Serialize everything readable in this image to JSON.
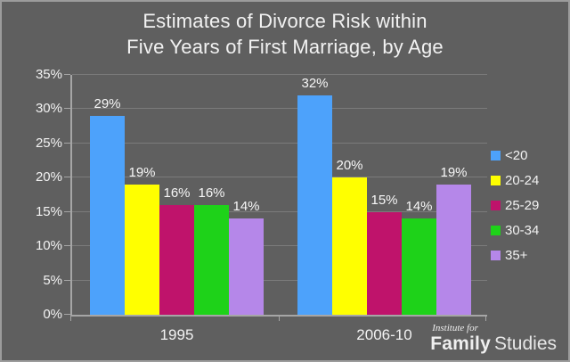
{
  "colors": {
    "background": "#5f5f5f",
    "frame_border": "#9c9c9c",
    "text": "#f2f2f2",
    "axis_line": "#a6a6a6",
    "gridline": "#7b7b7b"
  },
  "title": {
    "line1": "Estimates of Divorce Risk within",
    "line2": "Five Years of First Marriage, by Age"
  },
  "chart_data": {
    "type": "bar",
    "title": "Estimates of Divorce Risk within Five Years of First Marriage, by Age",
    "categories": [
      "1995",
      "2006-10"
    ],
    "series": [
      {
        "name": "<20",
        "color": "#4da2fb",
        "values": [
          29,
          32
        ]
      },
      {
        "name": "20-24",
        "color": "#ffff00",
        "values": [
          19,
          20
        ]
      },
      {
        "name": "25-29",
        "color": "#bf136b",
        "values": [
          16,
          15
        ]
      },
      {
        "name": "30-34",
        "color": "#1ed219",
        "values": [
          16,
          14
        ]
      },
      {
        "name": "35+",
        "color": "#b587e9",
        "values": [
          14,
          19
        ]
      }
    ],
    "value_suffix": "%",
    "ylim": [
      0,
      35
    ],
    "ytick_step": 5,
    "ytick_labels": [
      "0%",
      "5%",
      "10%",
      "15%",
      "20%",
      "25%",
      "30%",
      "35%"
    ],
    "grid": true,
    "legend_position": "right",
    "xlabel": "",
    "ylabel": ""
  },
  "logo": {
    "top_line": "Institute for",
    "brand_bold": "Family",
    "brand_light": "Studies"
  }
}
